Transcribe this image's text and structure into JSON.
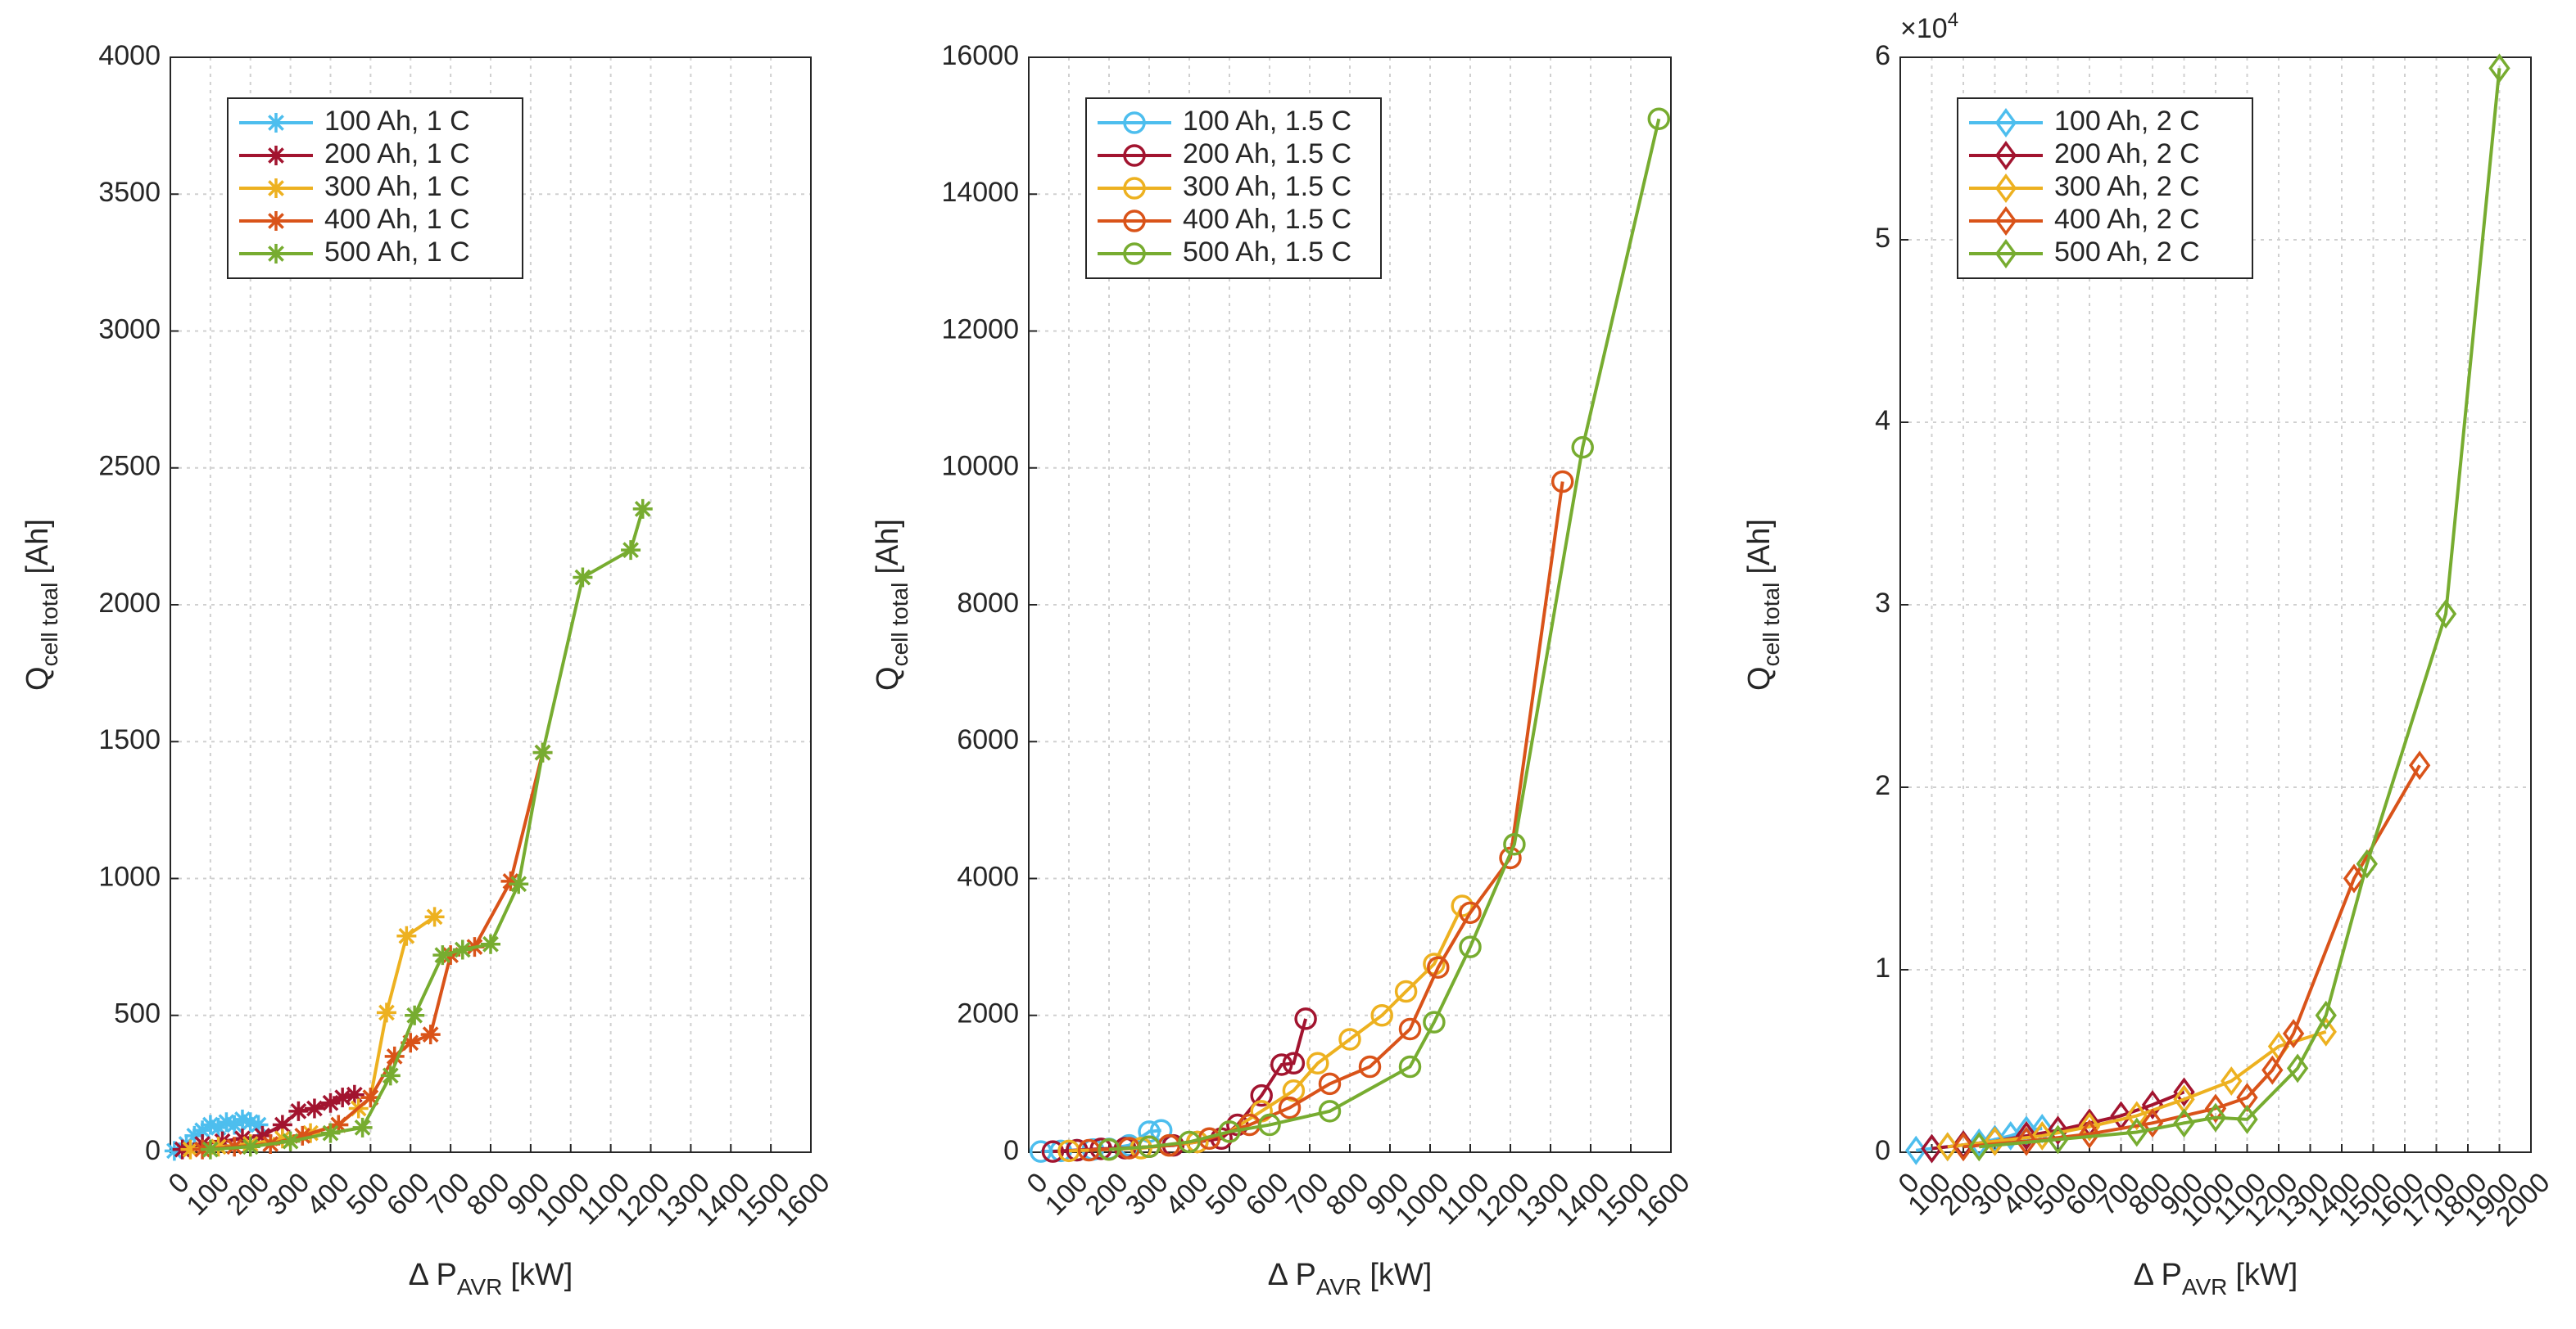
{
  "chart_data": [
    {
      "type": "line",
      "marker": "asterisk",
      "legend": "upper left",
      "grid": true,
      "xlabel_parts": [
        "Δ P",
        "AVR",
        "[kW]"
      ],
      "ylabel_parts": [
        "Q",
        "cell total",
        "[Ah]"
      ],
      "xlim": [
        0,
        1600
      ],
      "xticks": [
        0,
        100,
        200,
        300,
        400,
        500,
        600,
        700,
        800,
        900,
        1000,
        1100,
        1200,
        1300,
        1400,
        1500,
        1600
      ],
      "ylim": [
        0,
        4000
      ],
      "yticks": [
        0,
        500,
        1000,
        1500,
        2000,
        2500,
        3000,
        3500,
        4000
      ],
      "series": [
        {
          "name": "100 Ah, 1 C",
          "color": "#4dbeee",
          "x": [
            10,
            40,
            60,
            80,
            100,
            120,
            140,
            160,
            180,
            200,
            220
          ],
          "values": [
            5,
            30,
            60,
            80,
            100,
            90,
            110,
            100,
            120,
            110,
            100
          ]
        },
        {
          "name": "200 Ah, 1 C",
          "color": "#a2142f",
          "x": [
            30,
            80,
            130,
            180,
            230,
            280,
            320,
            360,
            400,
            430,
            460
          ],
          "values": [
            10,
            30,
            40,
            50,
            60,
            100,
            150,
            160,
            180,
            200,
            210
          ]
        },
        {
          "name": "300 Ah, 1 C",
          "color": "#edb120",
          "x": [
            50,
            120,
            200,
            280,
            350,
            420,
            470,
            500,
            540,
            590,
            660
          ],
          "values": [
            10,
            20,
            30,
            50,
            70,
            100,
            160,
            200,
            510,
            790,
            860
          ]
        },
        {
          "name": "400 Ah, 1 C",
          "color": "#d95319",
          "x": [
            80,
            160,
            250,
            330,
            420,
            500,
            560,
            600,
            650,
            700,
            760,
            850,
            930
          ],
          "values": [
            10,
            20,
            30,
            60,
            100,
            200,
            350,
            400,
            430,
            720,
            750,
            990,
            1460
          ]
        },
        {
          "name": "500 Ah, 1 C",
          "color": "#77ac30",
          "x": [
            100,
            200,
            300,
            400,
            480,
            550,
            610,
            680,
            730,
            800,
            870,
            930,
            1030,
            1150,
            1180
          ],
          "values": [
            10,
            20,
            40,
            70,
            90,
            280,
            500,
            720,
            740,
            760,
            980,
            1460,
            2100,
            2200,
            2350
          ]
        }
      ]
    },
    {
      "type": "line",
      "marker": "circle",
      "legend": "upper left",
      "grid": true,
      "xlabel_parts": [
        "Δ P",
        "AVR",
        "[kW]"
      ],
      "ylabel_parts": [
        "Q",
        "cell total",
        "[Ah]"
      ],
      "xlim": [
        0,
        1600
      ],
      "xticks": [
        0,
        100,
        200,
        300,
        400,
        500,
        600,
        700,
        800,
        900,
        1000,
        1100,
        1200,
        1300,
        1400,
        1500,
        1600
      ],
      "ylim": [
        0,
        16000
      ],
      "yticks": [
        0,
        2000,
        4000,
        6000,
        8000,
        10000,
        12000,
        14000,
        16000
      ],
      "series": [
        {
          "name": "100 Ah, 1.5 C",
          "color": "#4dbeee",
          "x": [
            30,
            80,
            120,
            160,
            200,
            250,
            300,
            330
          ],
          "values": [
            10,
            20,
            30,
            40,
            50,
            100,
            300,
            320
          ]
        },
        {
          "name": "200 Ah, 1.5 C",
          "color": "#a2142f",
          "x": [
            60,
            120,
            180,
            240,
            300,
            360,
            420,
            480,
            520,
            580,
            630,
            660,
            690
          ],
          "values": [
            10,
            30,
            50,
            60,
            80,
            100,
            150,
            200,
            400,
            830,
            1280,
            1300,
            1950
          ]
        },
        {
          "name": "300 Ah, 1.5 C",
          "color": "#edb120",
          "x": [
            100,
            200,
            280,
            350,
            420,
            500,
            580,
            660,
            720,
            800,
            880,
            940,
            1010,
            1080
          ],
          "values": [
            20,
            40,
            60,
            100,
            150,
            300,
            600,
            900,
            1300,
            1650,
            2000,
            2350,
            2750,
            3600
          ]
        },
        {
          "name": "400 Ah, 1.5 C",
          "color": "#d95319",
          "x": [
            150,
            250,
            350,
            450,
            550,
            650,
            750,
            850,
            950,
            1020,
            1100,
            1200,
            1330
          ],
          "values": [
            30,
            60,
            100,
            200,
            400,
            650,
            1000,
            1250,
            1800,
            2700,
            3500,
            4300,
            9800
          ]
        },
        {
          "name": "500 Ah, 1.5 C",
          "color": "#77ac30",
          "x": [
            200,
            300,
            400,
            500,
            600,
            750,
            950,
            1010,
            1100,
            1210,
            1380,
            1570
          ],
          "values": [
            40,
            80,
            150,
            300,
            400,
            600,
            1250,
            1900,
            3000,
            4500,
            10300,
            15100
          ]
        }
      ]
    },
    {
      "type": "line",
      "marker": "diamond",
      "legend": "upper left",
      "grid": true,
      "xlabel_parts": [
        "Δ P",
        "AVR",
        "[kW]"
      ],
      "ylabel_parts": [
        "Q",
        "cell total",
        "[Ah]"
      ],
      "y_multiplier": {
        "base": "×10",
        "exponent": "4"
      },
      "xlim": [
        0,
        2000
      ],
      "xticks": [
        0,
        100,
        200,
        300,
        400,
        500,
        600,
        700,
        800,
        900,
        1000,
        1100,
        1200,
        1300,
        1400,
        1500,
        1600,
        1700,
        1800,
        1900,
        2000
      ],
      "ylim": [
        0,
        60000
      ],
      "yticks": [
        {
          "value": 0,
          "label": "0"
        },
        {
          "value": 10000,
          "label": "1"
        },
        {
          "value": 20000,
          "label": "2"
        },
        {
          "value": 30000,
          "label": "3"
        },
        {
          "value": 40000,
          "label": "4"
        },
        {
          "value": 50000,
          "label": "5"
        },
        {
          "value": 60000,
          "label": "6"
        }
      ],
      "series": [
        {
          "name": "100 Ah, 2 C",
          "color": "#4dbeee",
          "x": [
            50,
            100,
            150,
            200,
            250,
            300,
            350,
            400,
            450
          ],
          "values": [
            100,
            200,
            300,
            400,
            500,
            700,
            900,
            1200,
            1300
          ]
        },
        {
          "name": "200 Ah, 2 C",
          "color": "#a2142f",
          "x": [
            100,
            200,
            300,
            400,
            500,
            600,
            700,
            800,
            900
          ],
          "values": [
            200,
            400,
            600,
            900,
            1200,
            1600,
            2000,
            2600,
            3300
          ]
        },
        {
          "name": "300 Ah, 2 C",
          "color": "#edb120",
          "x": [
            150,
            300,
            450,
            600,
            750,
            900,
            1050,
            1200,
            1350
          ],
          "values": [
            300,
            600,
            900,
            1400,
            2000,
            2900,
            3900,
            5800,
            6600
          ]
        },
        {
          "name": "400 Ah, 2 C",
          "color": "#d95319",
          "x": [
            200,
            400,
            600,
            800,
            1000,
            1100,
            1180,
            1247,
            1439,
            1647
          ],
          "values": [
            300,
            600,
            1000,
            1600,
            2400,
            3000,
            4500,
            6500,
            15000,
            21200
          ]
        },
        {
          "name": "500 Ah, 2 C",
          "color": "#77ac30",
          "x": [
            250,
            500,
            750,
            900,
            1000,
            1100,
            1260,
            1350,
            1480,
            1730,
            1900
          ],
          "values": [
            300,
            700,
            1100,
            1600,
            1900,
            1800,
            4600,
            7500,
            15800,
            29500,
            59400
          ]
        }
      ]
    }
  ]
}
